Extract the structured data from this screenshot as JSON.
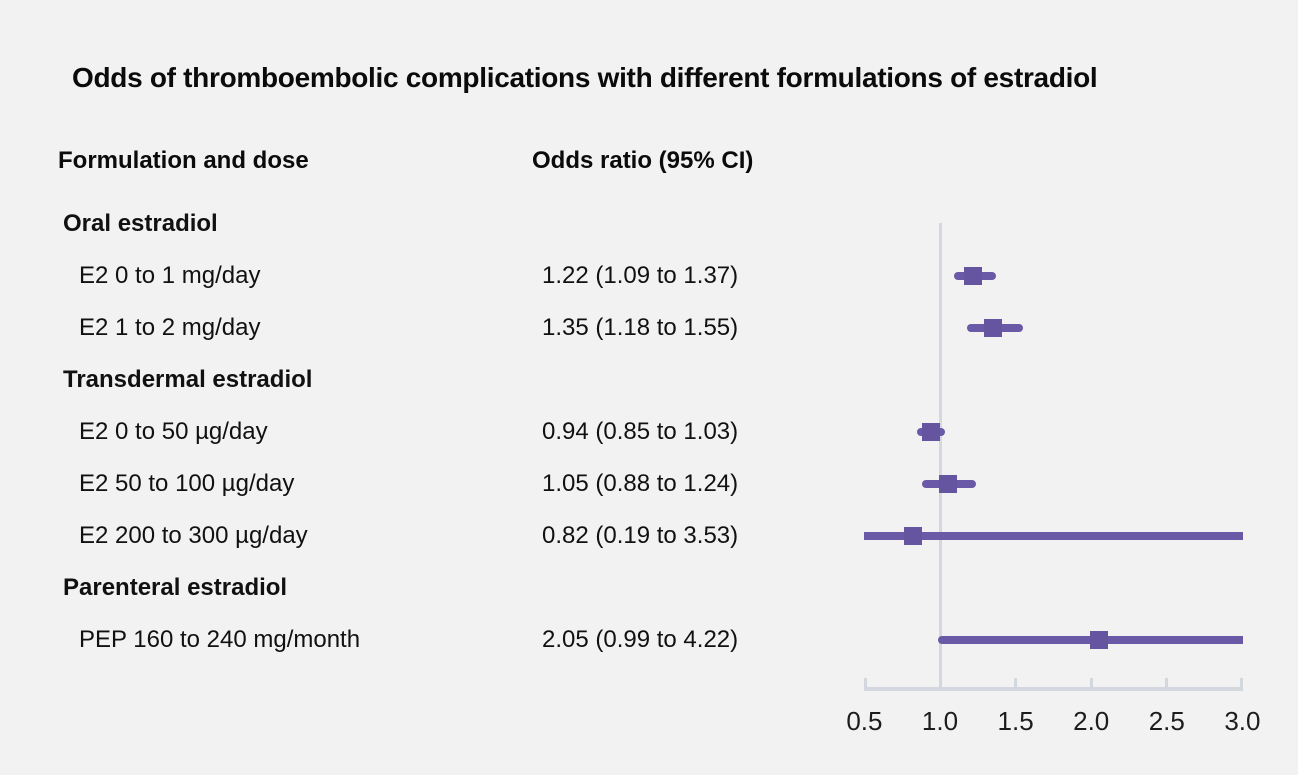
{
  "colors": {
    "background": "#f2f2f2",
    "ci_line": "#6a59a6",
    "or_square": "#65549f",
    "axis": "#d3d7de",
    "reference_line": "#d3d7de",
    "text": "#111111"
  },
  "chart_data": {
    "type": "forest",
    "title": "Odds of thromboembolic complications with different formulations of estradiol",
    "col1_header": "Formulation and dose",
    "col2_header": "Odds ratio (95% CI)",
    "xlim": [
      0.5,
      3.0
    ],
    "x_ticks": [
      0.5,
      1.0,
      1.5,
      2.0,
      2.5,
      3.0
    ],
    "x_tick_labels": [
      "0.5",
      "1.0",
      "1.5",
      "2.0",
      "2.5",
      "3.0"
    ],
    "reference_value": 1.0,
    "grid": false,
    "legend": false,
    "rows": [
      {
        "type": "section",
        "label": "Oral estradiol"
      },
      {
        "type": "item",
        "label": "E2 0 to 1 mg/day",
        "value_text": "1.22 (1.09 to 1.37)",
        "or": 1.22,
        "ci_low": 1.09,
        "ci_high": 1.37
      },
      {
        "type": "item",
        "label": "E2 1 to 2 mg/day",
        "value_text": "1.35 (1.18 to 1.55)",
        "or": 1.35,
        "ci_low": 1.18,
        "ci_high": 1.55
      },
      {
        "type": "section",
        "label": "Transdermal estradiol"
      },
      {
        "type": "item",
        "label": "E2 0 to 50 µg/day",
        "value_text": "0.94 (0.85 to 1.03)",
        "or": 0.94,
        "ci_low": 0.85,
        "ci_high": 1.03
      },
      {
        "type": "item",
        "label": "E2 50 to 100 µg/day",
        "value_text": "1.05 (0.88 to 1.24)",
        "or": 1.05,
        "ci_low": 0.88,
        "ci_high": 1.24
      },
      {
        "type": "item",
        "label": "E2 200 to 300 µg/day",
        "value_text": "0.82 (0.19 to 3.53)",
        "or": 0.82,
        "ci_low": 0.19,
        "ci_high": 3.53
      },
      {
        "type": "section",
        "label": "Parenteral estradiol"
      },
      {
        "type": "item",
        "label": "PEP 160 to 240 mg/month",
        "value_text": "2.05 (0.99 to 4.22)",
        "or": 2.05,
        "ci_low": 0.99,
        "ci_high": 4.22
      }
    ]
  }
}
